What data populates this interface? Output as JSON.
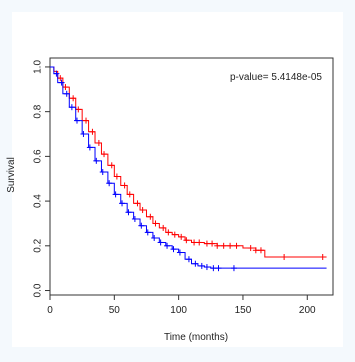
{
  "chart_data": {
    "type": "line",
    "title": "",
    "xlabel": "Time (months)",
    "ylabel": "Survival",
    "xlim": [
      0,
      220
    ],
    "ylim": [
      -0.02,
      1.04
    ],
    "x_ticks": [
      0,
      50,
      100,
      150,
      200
    ],
    "y_ticks": [
      0.0,
      0.2,
      0.4,
      0.6,
      0.8,
      1.0
    ],
    "x_tick_labels": [
      "0",
      "50",
      "100",
      "150",
      "200"
    ],
    "y_tick_labels": [
      "0.0",
      "0.2",
      "0.4",
      "0.6",
      "0.8",
      "1.0"
    ],
    "annotation": "p-value= 5.4148e-05",
    "grid": false,
    "series": [
      {
        "color": "#ff0000",
        "points": [
          [
            0,
            1.0
          ],
          [
            3,
            0.98
          ],
          [
            6,
            0.95
          ],
          [
            10,
            0.91
          ],
          [
            15,
            0.86
          ],
          [
            20,
            0.81
          ],
          [
            25,
            0.76
          ],
          [
            30,
            0.71
          ],
          [
            35,
            0.66
          ],
          [
            40,
            0.61
          ],
          [
            45,
            0.56
          ],
          [
            50,
            0.51
          ],
          [
            55,
            0.47
          ],
          [
            60,
            0.43
          ],
          [
            65,
            0.39
          ],
          [
            70,
            0.36
          ],
          [
            75,
            0.33
          ],
          [
            80,
            0.3
          ],
          [
            85,
            0.28
          ],
          [
            90,
            0.26
          ],
          [
            95,
            0.25
          ],
          [
            100,
            0.24
          ],
          [
            105,
            0.225
          ],
          [
            110,
            0.215
          ],
          [
            120,
            0.21
          ],
          [
            130,
            0.2
          ],
          [
            140,
            0.2
          ],
          [
            150,
            0.19
          ],
          [
            160,
            0.18
          ],
          [
            167,
            0.15
          ],
          [
            180,
            0.15
          ],
          [
            215,
            0.15
          ]
        ],
        "censor_times": [
          8,
          12,
          18,
          22,
          28,
          33,
          38,
          42,
          48,
          52,
          58,
          62,
          68,
          72,
          78,
          82,
          88,
          92,
          97,
          102,
          106,
          112,
          116,
          122,
          126,
          130,
          135,
          140,
          145,
          156,
          160,
          164,
          182,
          212
        ]
      },
      {
        "color": "#0000ff",
        "points": [
          [
            0,
            1.0
          ],
          [
            3,
            0.97
          ],
          [
            6,
            0.93
          ],
          [
            10,
            0.88
          ],
          [
            15,
            0.82
          ],
          [
            20,
            0.76
          ],
          [
            25,
            0.7
          ],
          [
            30,
            0.64
          ],
          [
            35,
            0.58
          ],
          [
            40,
            0.53
          ],
          [
            45,
            0.48
          ],
          [
            50,
            0.43
          ],
          [
            55,
            0.39
          ],
          [
            60,
            0.35
          ],
          [
            65,
            0.32
          ],
          [
            70,
            0.29
          ],
          [
            75,
            0.26
          ],
          [
            80,
            0.235
          ],
          [
            85,
            0.215
          ],
          [
            90,
            0.2
          ],
          [
            95,
            0.185
          ],
          [
            100,
            0.17
          ],
          [
            105,
            0.14
          ],
          [
            110,
            0.12
          ],
          [
            115,
            0.11
          ],
          [
            120,
            0.105
          ],
          [
            125,
            0.1
          ],
          [
            215,
            0.1
          ]
        ],
        "censor_times": [
          5,
          9,
          13,
          17,
          21,
          26,
          31,
          36,
          41,
          46,
          51,
          56,
          61,
          66,
          71,
          76,
          81,
          86,
          91,
          96,
          101,
          108,
          113,
          118,
          122,
          127,
          131,
          143
        ]
      }
    ]
  }
}
